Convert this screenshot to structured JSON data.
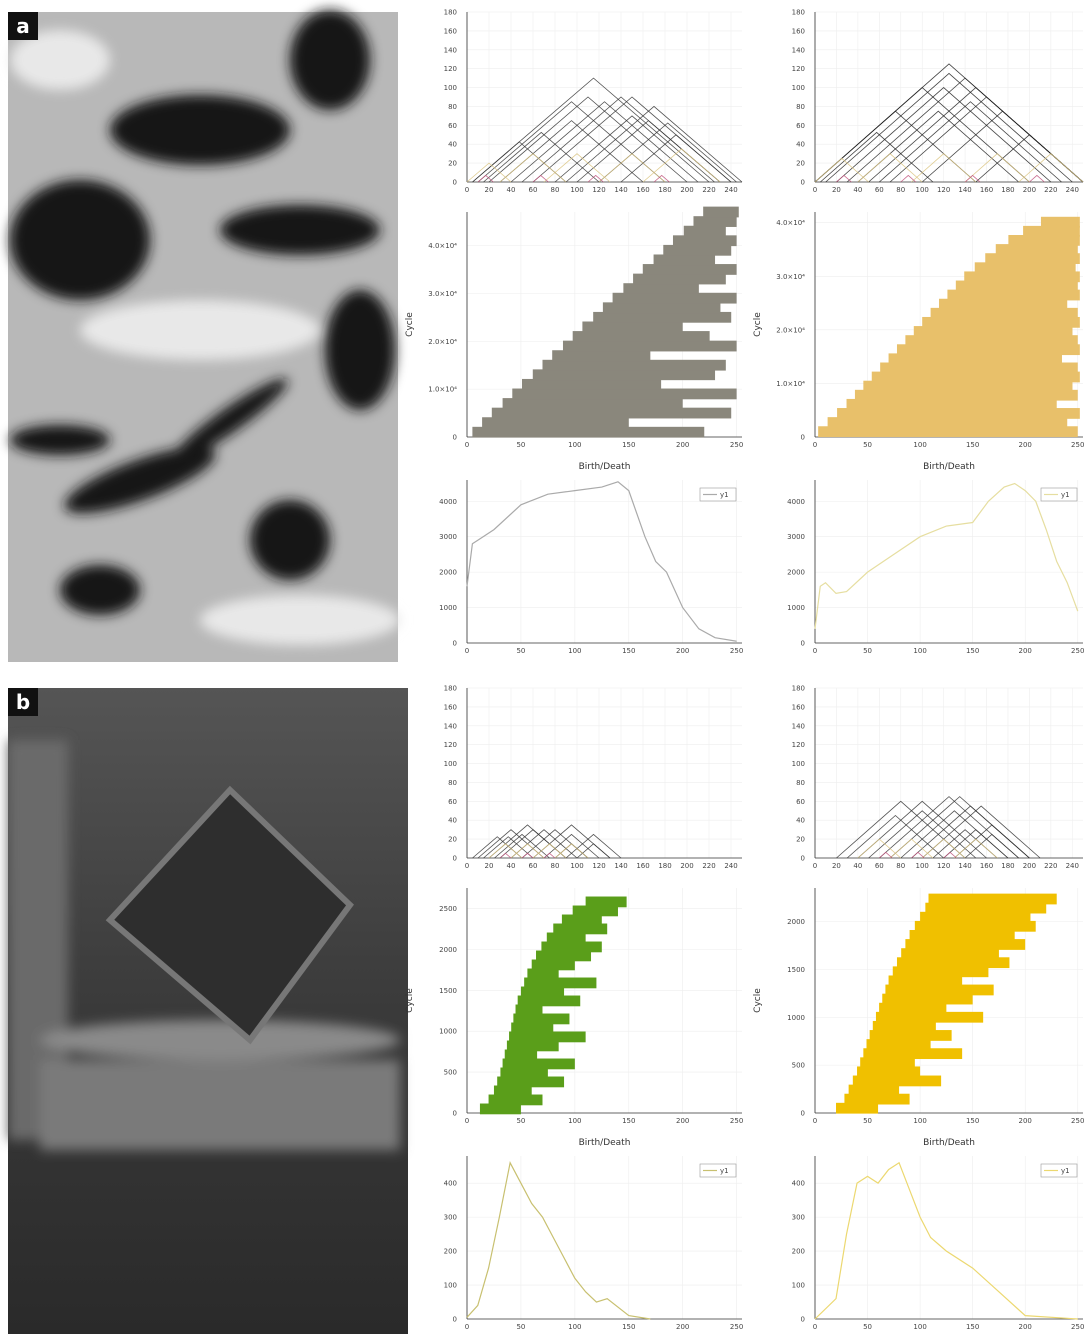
{
  "panel_labels": [
    "a",
    "b"
  ],
  "chart_data": [
    {
      "type": "triangle",
      "xlim": [
        0,
        250
      ],
      "ylim": [
        0,
        180
      ],
      "xticks": [
        0,
        20,
        40,
        60,
        80,
        100,
        120,
        140,
        160,
        180,
        200,
        220,
        240
      ],
      "yticks": [
        0,
        20,
        40,
        60,
        80,
        100,
        120,
        140,
        160,
        180
      ],
      "series": [
        {
          "color": "#333333",
          "births": [
            5,
            50,
            20,
            90,
            10,
            40,
            60,
            30,
            80,
            15,
            100,
            120,
            5,
            140
          ],
          "deaths": [
            225,
            230,
            200,
            250,
            180,
            210,
            240,
            160,
            220,
            120,
            230,
            245,
            90,
            240
          ]
        },
        {
          "color": "#d9c37e",
          "births": [
            0,
            30,
            70,
            120,
            160
          ],
          "deaths": [
            40,
            90,
            130,
            180,
            230
          ]
        },
        {
          "color": "#c0507a",
          "births": [
            10,
            60,
            110,
            170
          ],
          "deaths": [
            24,
            74,
            124,
            184
          ]
        }
      ]
    },
    {
      "type": "triangle",
      "xlim": [
        0,
        250
      ],
      "ylim": [
        0,
        180
      ],
      "xticks": [
        0,
        20,
        40,
        60,
        80,
        100,
        120,
        140,
        160,
        180,
        200,
        220,
        240
      ],
      "yticks": [
        0,
        20,
        40,
        60,
        80,
        100,
        120,
        140,
        160,
        180
      ],
      "series": [
        {
          "color": "#222222",
          "births": [
            0,
            10,
            30,
            20,
            50,
            0,
            40,
            70,
            0,
            100,
            60,
            5,
            150
          ],
          "deaths": [
            250,
            240,
            250,
            220,
            250,
            200,
            190,
            250,
            150,
            250,
            230,
            110,
            250
          ]
        },
        {
          "color": "#d9c37e",
          "births": [
            0,
            40,
            90,
            140,
            190
          ],
          "deaths": [
            50,
            100,
            150,
            200,
            250
          ]
        },
        {
          "color": "#c0507a",
          "births": [
            20,
            80,
            140,
            200
          ],
          "deaths": [
            34,
            94,
            154,
            214
          ]
        }
      ]
    },
    {
      "type": "barcode",
      "xlabel": "Birth/Death",
      "ylabel": "Cycle",
      "color": "#8a877c",
      "xlim": [
        0,
        255
      ],
      "ylim": [
        0,
        47000
      ],
      "xticks": [
        0,
        50,
        100,
        150,
        200,
        250
      ],
      "yticks": [
        0,
        {
          "value": 10000,
          "label": "1.0×10⁴"
        },
        {
          "value": 20000,
          "label": "2.0×10⁴"
        },
        {
          "value": 30000,
          "label": "3.0×10⁴"
        },
        {
          "value": 40000,
          "label": "4.0×10⁴"
        }
      ],
      "cycles": [
        1000,
        3000,
        5000,
        7000,
        9000,
        11000,
        13000,
        15000,
        17000,
        19000,
        21000,
        23000,
        25000,
        27000,
        29000,
        31000,
        33000,
        35000,
        37000,
        39000,
        41000,
        43000,
        45000,
        47000
      ],
      "births": [
        5,
        14,
        23,
        33,
        42,
        51,
        61,
        70,
        79,
        89,
        98,
        107,
        117,
        126,
        135,
        145,
        154,
        163,
        173,
        182,
        191,
        201,
        210,
        219
      ],
      "deaths": [
        220,
        150,
        245,
        200,
        250,
        180,
        230,
        240,
        170,
        250,
        225,
        200,
        245,
        235,
        250,
        215,
        240,
        250,
        230,
        245,
        250,
        240,
        250,
        252
      ]
    },
    {
      "type": "barcode",
      "xlabel": "Birth/Death",
      "ylabel": "Cycle",
      "color": "#e8c06a",
      "xlim": [
        0,
        255
      ],
      "ylim": [
        0,
        42000
      ],
      "xticks": [
        0,
        50,
        100,
        150,
        200,
        250
      ],
      "yticks": [
        0,
        {
          "value": 10000,
          "label": "1.0×10⁴"
        },
        {
          "value": 20000,
          "label": "2.0×10⁴"
        },
        {
          "value": 30000,
          "label": "3.0×10⁴"
        },
        {
          "value": 40000,
          "label": "4.0×10⁴"
        }
      ],
      "cycles": [
        1000,
        2700,
        4400,
        6100,
        7800,
        9500,
        11200,
        12900,
        14600,
        16300,
        18000,
        19700,
        21400,
        23100,
        24800,
        26500,
        28200,
        29900,
        31600,
        33300,
        35000,
        36700,
        38400,
        40100
      ],
      "births": [
        3,
        12,
        21,
        30,
        38,
        46,
        54,
        62,
        70,
        78,
        86,
        94,
        102,
        110,
        118,
        126,
        134,
        142,
        152,
        162,
        172,
        184,
        198,
        215
      ],
      "deaths": [
        250,
        240,
        252,
        230,
        250,
        245,
        252,
        250,
        235,
        252,
        250,
        245,
        252,
        250,
        240,
        252,
        250,
        252,
        248,
        252,
        250,
        252,
        252,
        252
      ]
    },
    {
      "type": "line",
      "xlim": [
        0,
        255
      ],
      "ylim": [
        0,
        4600
      ],
      "xticks": [
        0,
        50,
        100,
        150,
        200,
        250
      ],
      "yticks": [
        0,
        1000,
        2000,
        3000,
        4000
      ],
      "series": [
        {
          "name": "y1",
          "color": "#aaaaaa",
          "x": [
            0,
            5,
            10,
            25,
            50,
            75,
            100,
            125,
            140,
            150,
            165,
            175,
            185,
            200,
            215,
            230,
            250
          ],
          "values": [
            1600,
            2800,
            2900,
            3200,
            3900,
            4200,
            4300,
            4400,
            4550,
            4300,
            3000,
            2300,
            2000,
            1000,
            400,
            150,
            50
          ]
        }
      ]
    },
    {
      "type": "line",
      "xlim": [
        0,
        255
      ],
      "ylim": [
        0,
        4600
      ],
      "xticks": [
        0,
        50,
        100,
        150,
        200,
        250
      ],
      "yticks": [
        0,
        1000,
        2000,
        3000,
        4000
      ],
      "series": [
        {
          "name": "y1",
          "color": "#e6dea0",
          "x": [
            0,
            5,
            10,
            20,
            30,
            50,
            75,
            100,
            125,
            150,
            165,
            180,
            190,
            200,
            210,
            220,
            230,
            240,
            250
          ],
          "values": [
            400,
            1600,
            1700,
            1400,
            1450,
            2000,
            2500,
            3000,
            3300,
            3400,
            4000,
            4400,
            4500,
            4300,
            4000,
            3200,
            2300,
            1700,
            900
          ]
        }
      ]
    },
    {
      "type": "triangle",
      "xlim": [
        0,
        250
      ],
      "ylim": [
        0,
        180
      ],
      "xticks": [
        0,
        20,
        40,
        60,
        80,
        100,
        120,
        140,
        160,
        180,
        200,
        220,
        240
      ],
      "yticks": [
        0,
        20,
        40,
        60,
        80,
        100,
        120,
        140,
        160,
        180
      ],
      "series": [
        {
          "color": "#333333",
          "births": [
            10,
            20,
            30,
            25,
            40,
            50,
            70,
            80,
            15,
            60,
            90,
            100,
            5
          ],
          "deaths": [
            70,
            90,
            90,
            75,
            100,
            110,
            120,
            110,
            60,
            130,
            140,
            130,
            50
          ]
        },
        {
          "color": "#d9c37e",
          "births": [
            20,
            40,
            60,
            80
          ],
          "deaths": [
            50,
            70,
            90,
            110
          ]
        },
        {
          "color": "#c0507a",
          "births": [
            30,
            50,
            70
          ],
          "deaths": [
            40,
            60,
            80
          ]
        }
      ]
    },
    {
      "type": "triangle",
      "xlim": [
        0,
        250
      ],
      "ylim": [
        0,
        180
      ],
      "xticks": [
        0,
        20,
        40,
        60,
        80,
        100,
        120,
        140,
        160,
        180,
        200,
        220,
        240
      ],
      "yticks": [
        0,
        20,
        40,
        60,
        80,
        100,
        120,
        140,
        160,
        180
      ],
      "series": [
        {
          "color": "#333333",
          "births": [
            20,
            40,
            60,
            80,
            90,
            100,
            120,
            110,
            30,
            70,
            130,
            140,
            50
          ],
          "deaths": [
            140,
            160,
            190,
            180,
            200,
            210,
            180,
            170,
            120,
            200,
            200,
            190,
            150
          ]
        },
        {
          "color": "#d9c37e",
          "births": [
            40,
            70,
            100,
            130
          ],
          "deaths": [
            80,
            110,
            140,
            170
          ]
        },
        {
          "color": "#c0507a",
          "births": [
            60,
            90,
            120
          ],
          "deaths": [
            72,
            102,
            132
          ]
        }
      ]
    },
    {
      "type": "barcode",
      "xlabel": "Birth/Death",
      "ylabel": "Cycle",
      "color": "#5a9e1a",
      "xlim": [
        0,
        255
      ],
      "ylim": [
        0,
        2750
      ],
      "xticks": [
        0,
        50,
        100,
        150,
        200,
        250
      ],
      "yticks": [
        0,
        500,
        1000,
        1500,
        2000,
        2500
      ],
      "cycles": [
        50,
        160,
        270,
        380,
        490,
        600,
        710,
        820,
        930,
        1040,
        1150,
        1260,
        1370,
        1480,
        1590,
        1700,
        1810,
        1920,
        2030,
        2140,
        2250,
        2360,
        2470,
        2580
      ],
      "births": [
        12,
        20,
        25,
        28,
        31,
        33,
        35,
        37,
        39,
        41,
        43,
        45,
        47,
        50,
        53,
        56,
        60,
        64,
        69,
        74,
        80,
        88,
        98,
        110
      ],
      "deaths": [
        50,
        70,
        60,
        90,
        75,
        100,
        65,
        85,
        110,
        80,
        95,
        70,
        105,
        90,
        120,
        85,
        100,
        115,
        125,
        110,
        130,
        125,
        140,
        148
      ]
    },
    {
      "type": "barcode",
      "xlabel": "Birth/Death",
      "ylabel": "Cycle",
      "color": "#f0c000",
      "xlim": [
        0,
        255
      ],
      "ylim": [
        0,
        2350
      ],
      "xticks": [
        0,
        50,
        100,
        150,
        200,
        250
      ],
      "yticks": [
        0,
        500,
        1000,
        1500,
        2000
      ],
      "cycles": [
        50,
        145,
        240,
        335,
        430,
        525,
        620,
        715,
        810,
        905,
        1000,
        1095,
        1190,
        1285,
        1380,
        1475,
        1570,
        1665,
        1760,
        1855,
        1950,
        2045,
        2140,
        2235
      ],
      "births": [
        20,
        28,
        32,
        36,
        40,
        43,
        46,
        49,
        52,
        55,
        58,
        61,
        64,
        67,
        70,
        74,
        78,
        82,
        86,
        90,
        95,
        100,
        105,
        108
      ],
      "deaths": [
        60,
        90,
        80,
        120,
        100,
        95,
        140,
        110,
        130,
        115,
        160,
        125,
        150,
        170,
        140,
        165,
        185,
        175,
        200,
        190,
        210,
        205,
        220,
        230
      ]
    },
    {
      "type": "line",
      "xlim": [
        0,
        255
      ],
      "ylim": [
        0,
        480
      ],
      "xticks": [
        0,
        50,
        100,
        150,
        200,
        250
      ],
      "yticks": [
        0,
        100,
        200,
        300,
        400
      ],
      "series": [
        {
          "name": "y1",
          "color": "#c8c070",
          "x": [
            0,
            10,
            20,
            30,
            40,
            50,
            60,
            70,
            80,
            90,
            100,
            110,
            120,
            130,
            150,
            170
          ],
          "values": [
            5,
            40,
            150,
            300,
            460,
            400,
            340,
            300,
            240,
            180,
            120,
            80,
            50,
            60,
            10,
            0
          ]
        }
      ]
    },
    {
      "type": "line",
      "xlim": [
        0,
        255
      ],
      "ylim": [
        0,
        480
      ],
      "xticks": [
        0,
        50,
        100,
        150,
        200,
        250
      ],
      "yticks": [
        0,
        100,
        200,
        300,
        400
      ],
      "series": [
        {
          "name": "y1",
          "color": "#ecd870",
          "x": [
            0,
            20,
            30,
            40,
            50,
            60,
            70,
            80,
            90,
            100,
            110,
            125,
            150,
            175,
            200,
            250
          ],
          "values": [
            0,
            60,
            250,
            400,
            420,
            400,
            440,
            460,
            380,
            300,
            240,
            200,
            150,
            80,
            10,
            0
          ]
        }
      ]
    }
  ]
}
